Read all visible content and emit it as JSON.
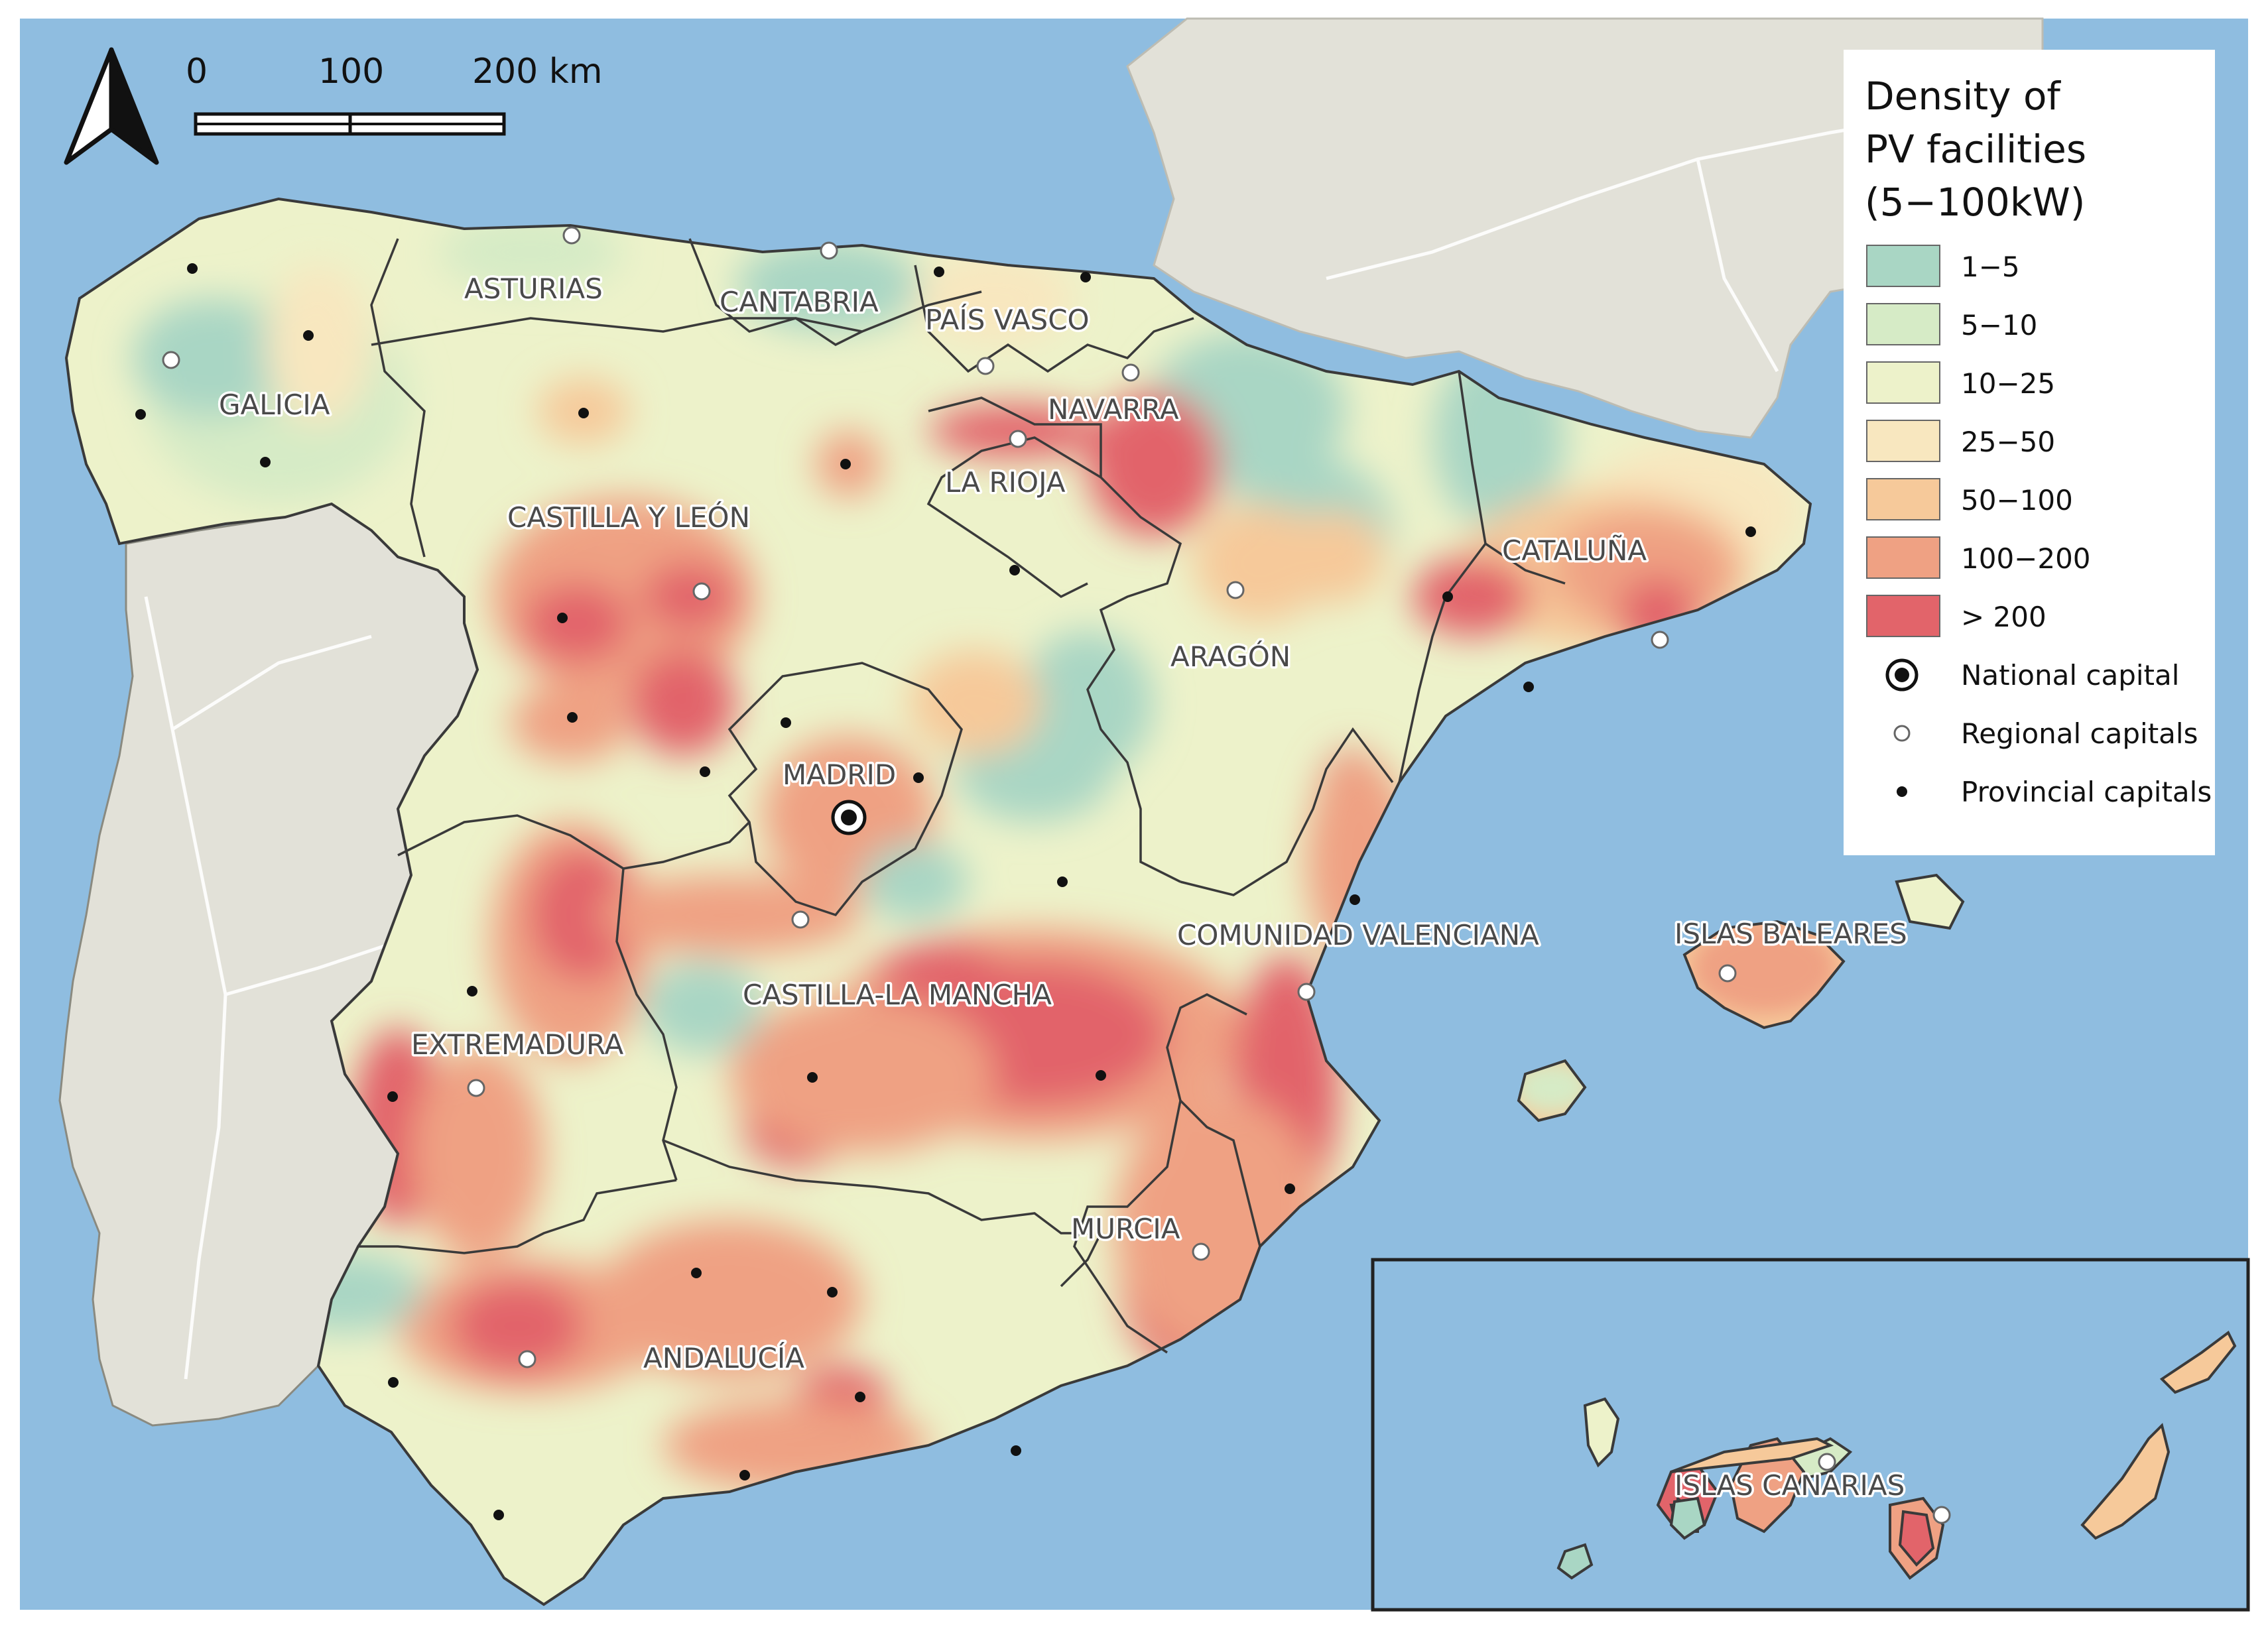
{
  "map": {
    "scale_bar": {
      "labels": [
        "0",
        "100",
        "200 km"
      ]
    },
    "north_arrow": {
      "icon": "north-arrow-icon"
    },
    "colors": {
      "sea": "#8fbde0",
      "land_outside": "#e2e1d8",
      "class_1_5": "#a9d6c4",
      "class_5_10": "#d6ebc6",
      "class_10_25": "#edf2ca",
      "class_25_50": "#f8e7bf",
      "class_50_100": "#f6c99a",
      "class_100_200": "#efa183",
      "class_gt_200": "#e2646a"
    },
    "regions": [
      "GALICIA",
      "ASTURIAS",
      "CANTABRIA",
      "PAÍS VASCO",
      "NAVARRA",
      "LA RIOJA",
      "CASTILLA Y LEÓN",
      "CATALUÑA",
      "ARAGÓN",
      "MADRID",
      "COMUNIDAD VALENCIANA",
      "ISLAS BALEARES",
      "CASTILLA-LA MANCHA",
      "EXTREMADURA",
      "MURCIA",
      "ANDALUCÍA",
      "ISLAS CANARIAS"
    ]
  },
  "legend": {
    "title": [
      "Density of",
      "PV facilities",
      "(5−100kW)"
    ],
    "classes": [
      {
        "label": "1−5",
        "color": "#a9d6c4"
      },
      {
        "label": "5−10",
        "color": "#d6ebc6"
      },
      {
        "label": "10−25",
        "color": "#edf2ca"
      },
      {
        "label": "25−50",
        "color": "#f8e7bf"
      },
      {
        "label": "50−100",
        "color": "#f6c99a"
      },
      {
        "label": "100−200",
        "color": "#efa183"
      },
      {
        "label": "> 200",
        "color": "#e2646a"
      }
    ],
    "symbols": [
      {
        "label": "National capital",
        "icon": "national-capital-icon"
      },
      {
        "label": "Regional capitals",
        "icon": "regional-capital-icon"
      },
      {
        "label": "Provincial capitals",
        "icon": "provincial-capital-icon"
      }
    ]
  }
}
